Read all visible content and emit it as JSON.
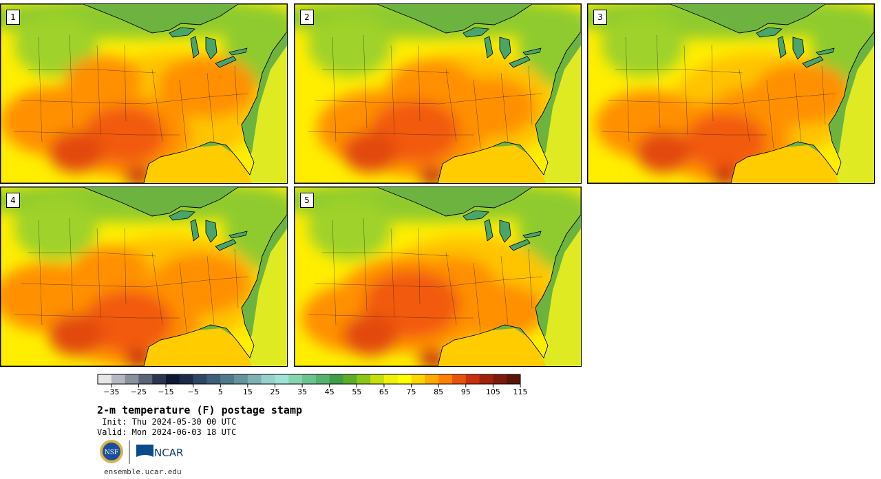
{
  "panels": [
    {
      "label": "1",
      "variant": 0
    },
    {
      "label": "2",
      "variant": 1
    },
    {
      "label": "3",
      "variant": 2
    },
    {
      "label": "4",
      "variant": 3
    },
    {
      "label": "5",
      "variant": 4
    }
  ],
  "colorbar": {
    "colors": [
      "#e6e6e6",
      "#b5b8c0",
      "#8a909c",
      "#5c6478",
      "#2b3550",
      "#0e1830",
      "#1c2c48",
      "#2e4664",
      "#3e5f7a",
      "#507a8c",
      "#66949e",
      "#7eb0b4",
      "#98d0cc",
      "#9fe3d6",
      "#87d4b0",
      "#6cc390",
      "#55b26e",
      "#3f9d4a",
      "#5cad2a",
      "#8cc51a",
      "#c5e00e",
      "#eef20a",
      "#ffff00",
      "#ffd500",
      "#ffaa00",
      "#ff7f00",
      "#e8530c",
      "#c8300e",
      "#a0200c",
      "#7c1a0c",
      "#5a1408"
    ],
    "tick_labels": [
      "−35",
      "−25",
      "−15",
      "−5",
      "5",
      "15",
      "25",
      "35",
      "45",
      "55",
      "65",
      "75",
      "85",
      "95",
      "105",
      "115"
    ]
  },
  "title": "2-m temperature (F) postage stamp",
  "init": " Init: Thu 2024-05-30 00 UTC",
  "valid": "Valid: Mon 2024-06-03 18 UTC",
  "logos": {
    "nsf": "NSF",
    "ncar": "NCAR"
  },
  "footer": "ensemble.ucar.edu"
}
